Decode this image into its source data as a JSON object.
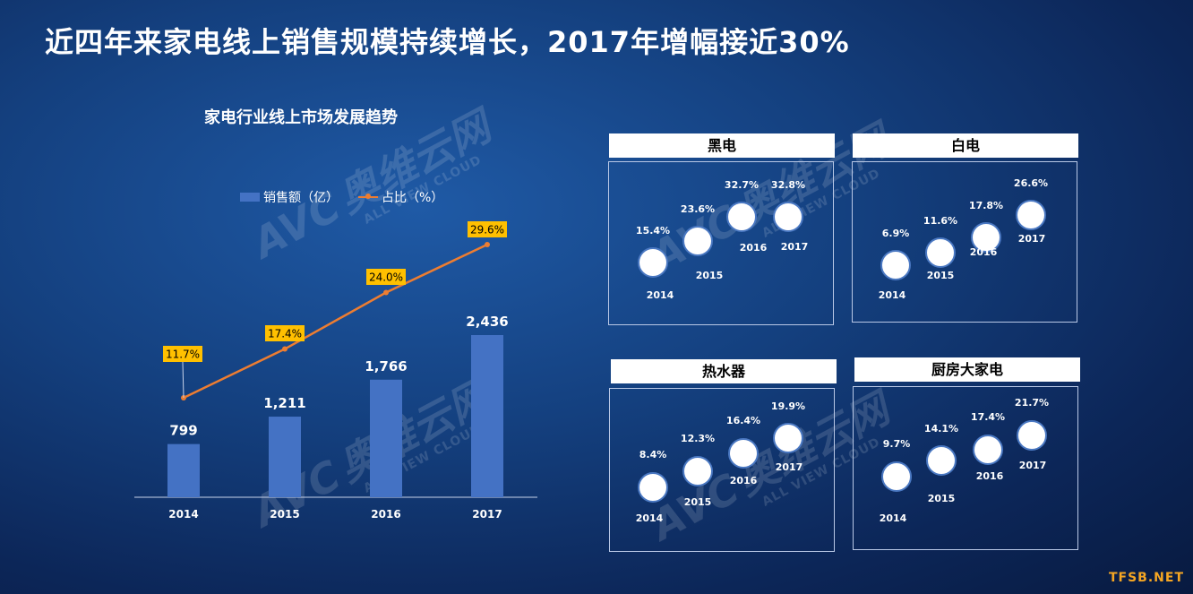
{
  "page": {
    "title": "近四年来家电线上销售规模持续增长，2017年增幅接近30%"
  },
  "legend": {
    "bar_label": "销售额（亿）",
    "line_label": "占比（%）"
  },
  "chart_data": [
    {
      "type": "bar+line",
      "title": "家电行业线上市场发展趋势",
      "categories": [
        "2014",
        "2015",
        "2016",
        "2017"
      ],
      "series": [
        {
          "name": "销售额（亿）",
          "type": "bar",
          "values": [
            799,
            1211,
            1766,
            2436
          ],
          "labels": [
            "799",
            "1,211",
            "1,766",
            "2,436"
          ],
          "color": "#4472c4"
        },
        {
          "name": "占比（%）",
          "type": "line",
          "values": [
            11.7,
            17.4,
            24.0,
            29.6
          ],
          "labels": [
            "11.7%",
            "17.4%",
            "24.0%",
            "29.6%"
          ],
          "color": "#ed7d31",
          "label_bg": "#ffc000"
        }
      ]
    },
    {
      "type": "scatter",
      "title": "黑电",
      "categories": [
        "2014",
        "2015",
        "2016",
        "2017"
      ],
      "values": [
        15.4,
        23.6,
        32.7,
        32.8
      ],
      "labels": [
        "15.4%",
        "23.6%",
        "32.7%",
        "32.8%"
      ]
    },
    {
      "type": "scatter",
      "title": "白电",
      "categories": [
        "2014",
        "2015",
        "2016",
        "2017"
      ],
      "values": [
        6.9,
        11.6,
        17.8,
        26.6
      ],
      "labels": [
        "6.9%",
        "11.6%",
        "17.8%",
        "26.6%"
      ]
    },
    {
      "type": "scatter",
      "title": "热水器",
      "categories": [
        "2014",
        "2015",
        "2016",
        "2017"
      ],
      "values": [
        8.4,
        12.3,
        16.4,
        19.9
      ],
      "labels": [
        "8.4%",
        "12.3%",
        "16.4%",
        "19.9%"
      ]
    },
    {
      "type": "scatter",
      "title": "厨房大家电",
      "categories": [
        "2014",
        "2015",
        "2016",
        "2017"
      ],
      "values": [
        9.7,
        14.1,
        17.4,
        21.7
      ],
      "labels": [
        "9.7%",
        "14.1%",
        "17.4%",
        "21.7%"
      ]
    }
  ],
  "watermark": {
    "logo": "AVC",
    "cn": "奥维云网",
    "en": "ALL VIEW CLOUD"
  },
  "footer": {
    "site": "TFSB.NET"
  },
  "colors": {
    "bar": "#4472c4",
    "line": "#ed7d31",
    "label_bg": "#ffc000",
    "bubble_border": "#4a78c2"
  }
}
